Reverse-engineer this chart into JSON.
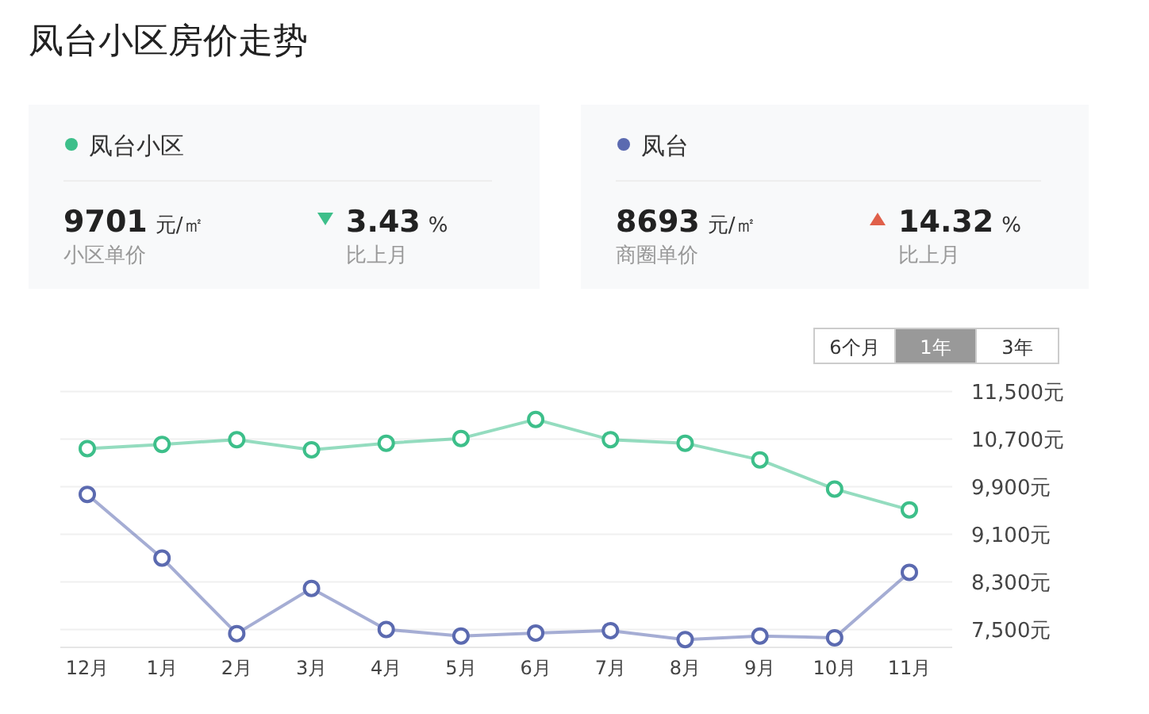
{
  "chart_data": {
    "type": "line",
    "title": "凤台小区房价走势",
    "categories": [
      "12月",
      "1月",
      "2月",
      "3月",
      "4月",
      "5月",
      "6月",
      "7月",
      "8月",
      "9月",
      "10月",
      "11月"
    ],
    "series": [
      {
        "name": "凤台小区",
        "color": "#3dbf8a",
        "values": [
          10540,
          10610,
          10690,
          10520,
          10630,
          10710,
          11030,
          10690,
          10630,
          10350,
          9860,
          9510
        ]
      },
      {
        "name": "凤台",
        "color": "#5b6ab0",
        "values": [
          9770,
          8700,
          7430,
          8190,
          7500,
          7390,
          7440,
          7480,
          7330,
          7390,
          7360,
          8460
        ]
      }
    ],
    "ylim": [
      7200,
      11500
    ],
    "yticks": [
      {
        "value": 7500,
        "label": "7,500元"
      },
      {
        "value": 8300,
        "label": "8,300元"
      },
      {
        "value": 9100,
        "label": "9,100元"
      },
      {
        "value": 9900,
        "label": "9,900元"
      },
      {
        "value": 10700,
        "label": "10,700元"
      },
      {
        "value": 11500,
        "label": "11,500元"
      }
    ],
    "grid": "y",
    "legend": "top",
    "marker": "circle",
    "line_style": "solid",
    "annotations": [
      "9701",
      "元/㎡",
      "小区单价",
      "3.43",
      "%",
      "比上月",
      "8693",
      "元/㎡",
      "商圈单价",
      "14.32",
      "%",
      "比上月",
      "6个月",
      "1年",
      "3年"
    ]
  }
}
